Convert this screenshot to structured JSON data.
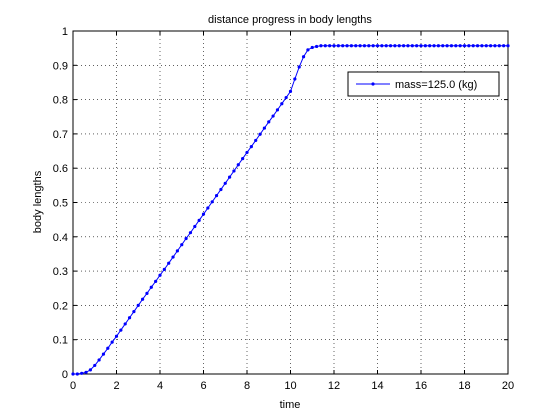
{
  "chart_data": {
    "type": "line",
    "title": "distance progress in body lengths",
    "xlabel": "time",
    "ylabel": "body lengths",
    "xlim": [
      0,
      20
    ],
    "ylim": [
      0,
      1
    ],
    "xticks": [
      0,
      2,
      4,
      6,
      8,
      10,
      12,
      14,
      16,
      18,
      20
    ],
    "yticks": [
      0,
      0.1,
      0.2,
      0.3,
      0.4,
      0.5,
      0.6,
      0.7,
      0.8,
      0.9,
      1
    ],
    "xtick_labels": [
      "0",
      "2",
      "4",
      "6",
      "8",
      "10",
      "12",
      "14",
      "16",
      "18",
      "20"
    ],
    "ytick_labels": [
      "0",
      "0.1",
      "0.2",
      "0.3",
      "0.4",
      "0.5",
      "0.6",
      "0.7",
      "0.8",
      "0.9",
      "1"
    ],
    "grid": true,
    "legend_position": "top-right",
    "series": [
      {
        "name": "mass=125.0 (kg)",
        "color": "#0000ff",
        "marker": "point",
        "x": [
          0,
          0.2,
          0.4,
          0.6,
          0.8,
          1.0,
          1.2,
          1.4,
          1.6,
          1.8,
          2.0,
          2.2,
          2.4,
          2.6,
          2.8,
          3.0,
          3.2,
          3.4,
          3.6,
          3.8,
          4.0,
          4.2,
          4.4,
          4.6,
          4.8,
          5.0,
          5.2,
          5.4,
          5.6,
          5.8,
          6.0,
          6.2,
          6.4,
          6.6,
          6.8,
          7.0,
          7.2,
          7.4,
          7.6,
          7.8,
          8.0,
          8.2,
          8.4,
          8.6,
          8.8,
          9.0,
          9.2,
          9.4,
          9.6,
          9.8,
          10.0,
          10.2,
          10.4,
          10.6,
          10.8,
          11.0,
          11.2,
          11.4,
          11.6,
          11.8,
          12.0,
          12.2,
          12.4,
          12.6,
          12.8,
          13.0,
          13.2,
          13.4,
          13.6,
          13.8,
          14.0,
          14.2,
          14.4,
          14.6,
          14.8,
          15.0,
          15.2,
          15.4,
          15.6,
          15.8,
          16.0,
          16.2,
          16.4,
          16.6,
          16.8,
          17.0,
          17.2,
          17.4,
          17.6,
          17.8,
          18.0,
          18.2,
          18.4,
          18.6,
          18.8,
          19.0,
          19.2,
          19.4,
          19.6,
          19.8,
          20.0
        ],
        "y": [
          0,
          0,
          0.002,
          0.005,
          0.012,
          0.025,
          0.041,
          0.058,
          0.075,
          0.093,
          0.11,
          0.128,
          0.146,
          0.164,
          0.182,
          0.2,
          0.218,
          0.235,
          0.253,
          0.27,
          0.288,
          0.305,
          0.323,
          0.341,
          0.359,
          0.377,
          0.395,
          0.412,
          0.43,
          0.448,
          0.466,
          0.484,
          0.502,
          0.52,
          0.538,
          0.556,
          0.574,
          0.592,
          0.61,
          0.628,
          0.646,
          0.663,
          0.681,
          0.699,
          0.717,
          0.735,
          0.752,
          0.77,
          0.788,
          0.806,
          0.824,
          0.86,
          0.895,
          0.925,
          0.945,
          0.952,
          0.955,
          0.957,
          0.957,
          0.957,
          0.957,
          0.957,
          0.957,
          0.957,
          0.957,
          0.957,
          0.957,
          0.957,
          0.957,
          0.957,
          0.957,
          0.957,
          0.957,
          0.957,
          0.957,
          0.957,
          0.957,
          0.957,
          0.957,
          0.957,
          0.957,
          0.957,
          0.957,
          0.957,
          0.957,
          0.957,
          0.957,
          0.957,
          0.957,
          0.957,
          0.957,
          0.957,
          0.957,
          0.957,
          0.957,
          0.957,
          0.957,
          0.957,
          0.957,
          0.957,
          0.957
        ]
      }
    ]
  }
}
